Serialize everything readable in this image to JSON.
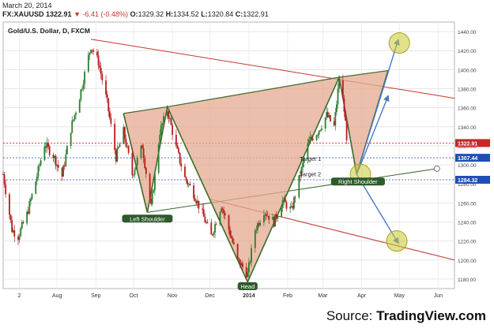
{
  "header": {
    "date": "March 20, 2014",
    "symbol": "FX:XAUUSD",
    "last": "1322.91",
    "change": "-6.41 (-0.48%)",
    "open_label": "O:",
    "open": "1329.32",
    "high_label": "H:",
    "high": "1334.52",
    "low_label": "L:",
    "low": "1320.84",
    "close_label": "C:",
    "close": "1322.91"
  },
  "source": {
    "prefix": "Source: ",
    "brand": "TradingView.com"
  },
  "chart_data": {
    "type": "candlestick",
    "title": "Gold/U.S. Dollar, D, FXCM",
    "y_range": [
      1170,
      1450
    ],
    "y_ticks": [
      1180,
      1200,
      1220,
      1240,
      1260,
      1280,
      1300,
      1320,
      1340,
      1360,
      1380,
      1400,
      1420,
      1440
    ],
    "x_ticks": [
      {
        "label": "2",
        "x": "2013-07-02"
      },
      {
        "label": "Aug",
        "x": "2013-08-01"
      },
      {
        "label": "Sep",
        "x": "2013-09-01"
      },
      {
        "label": "Oct",
        "x": "2013-10-01"
      },
      {
        "label": "Nov",
        "x": "2013-11-01"
      },
      {
        "label": "Dec",
        "x": "2013-12-01"
      },
      {
        "label": "2014",
        "x": "2014-01-01"
      },
      {
        "label": "Feb",
        "x": "2014-02-01"
      },
      {
        "label": "Mar",
        "x": "2014-03-01"
      },
      {
        "label": "Apr",
        "x": "2014-04-01"
      },
      {
        "label": "May",
        "x": "2014-05-01"
      },
      {
        "label": "Jun",
        "x": "2014-06-01"
      }
    ],
    "x_range": [
      "2013-06-19",
      "2014-06-14"
    ],
    "price_path": [
      [
        "2013-06-19",
        1290
      ],
      [
        "2013-06-26",
        1232
      ],
      [
        "2013-07-01",
        1225
      ],
      [
        "2013-07-08",
        1248
      ],
      [
        "2013-07-15",
        1283
      ],
      [
        "2013-07-22",
        1322
      ],
      [
        "2013-07-29",
        1310
      ],
      [
        "2013-08-05",
        1288
      ],
      [
        "2013-08-12",
        1338
      ],
      [
        "2013-08-19",
        1372
      ],
      [
        "2013-08-28",
        1425
      ],
      [
        "2013-09-03",
        1408
      ],
      [
        "2013-09-10",
        1365
      ],
      [
        "2013-09-17",
        1308
      ],
      [
        "2013-09-23",
        1335
      ],
      [
        "2013-09-30",
        1290
      ],
      [
        "2013-10-08",
        1320
      ],
      [
        "2013-10-15",
        1255
      ],
      [
        "2013-10-22",
        1335
      ],
      [
        "2013-10-28",
        1358
      ],
      [
        "2013-11-04",
        1318
      ],
      [
        "2013-11-11",
        1286
      ],
      [
        "2013-11-18",
        1270
      ],
      [
        "2013-11-25",
        1248
      ],
      [
        "2013-12-02",
        1225
      ],
      [
        "2013-12-10",
        1258
      ],
      [
        "2013-12-17",
        1228
      ],
      [
        "2013-12-23",
        1200
      ],
      [
        "2013-12-31",
        1185
      ],
      [
        "2014-01-06",
        1232
      ],
      [
        "2014-01-13",
        1252
      ],
      [
        "2014-01-21",
        1240
      ],
      [
        "2014-01-28",
        1262
      ],
      [
        "2014-02-04",
        1252
      ],
      [
        "2014-02-11",
        1290
      ],
      [
        "2014-02-18",
        1325
      ],
      [
        "2014-02-25",
        1335
      ],
      [
        "2014-03-04",
        1352
      ],
      [
        "2014-03-10",
        1340
      ],
      [
        "2014-03-14",
        1390
      ],
      [
        "2014-03-18",
        1360
      ],
      [
        "2014-03-20",
        1323
      ]
    ],
    "price_labels": [
      {
        "value": 1322.91,
        "text": "1322.91",
        "color": "#c62828"
      },
      {
        "value": 1307.44,
        "text": "1307.44",
        "color": "#1e4fb8"
      },
      {
        "value": 1284.32,
        "text": "1284.32",
        "color": "#1e4fb8"
      }
    ],
    "lines": [
      {
        "name": "upper-resistance-line",
        "color": "#c0392b",
        "from": [
          "2013-08-28",
          1432
        ],
        "to": [
          "2014-06-14",
          1370
        ]
      },
      {
        "name": "lower-support-line",
        "color": "#c0392b",
        "from": [
          "2013-12-01",
          1264
        ],
        "to": [
          "2014-06-14",
          1200
        ]
      },
      {
        "name": "neckline",
        "color": "#3a6b2a",
        "from": [
          "2013-10-12",
          1250
        ],
        "to": [
          "2014-05-31",
          1296
        ]
      }
    ],
    "pattern": {
      "name": "butterfly",
      "fill": "#e4a98f",
      "outline": "#3d6b2b",
      "points": [
        [
          "2013-09-23",
          1354
        ],
        [
          "2013-10-12",
          1250
        ],
        [
          "2013-10-28",
          1361
        ],
        [
          "2013-12-31",
          1177
        ],
        [
          "2014-03-14",
          1392
        ],
        [
          "2014-03-28",
          1290
        ],
        [
          "2014-04-22",
          1399
        ]
      ]
    },
    "projections": [
      {
        "name": "projection-arrow-up-high",
        "from": [
          "2014-03-28",
          1290
        ],
        "to": [
          "2014-04-30",
          1431
        ]
      },
      {
        "name": "projection-arrow-up-mid",
        "from": [
          "2014-03-28",
          1290
        ],
        "to": [
          "2014-04-22",
          1372
        ]
      },
      {
        "name": "projection-arrow-down",
        "from": [
          "2014-03-28",
          1290
        ],
        "to": [
          "2014-04-30",
          1218
        ]
      }
    ],
    "target_circles": [
      {
        "name": "target-circle-top",
        "at": [
          "2014-05-01",
          1428
        ]
      },
      {
        "name": "target-circle-right-shoulder",
        "at": [
          "2014-03-31",
          1290
        ]
      },
      {
        "name": "target-circle-bottom",
        "at": [
          "2014-04-29",
          1220
        ]
      }
    ],
    "neckline_end_marker": [
      "2014-05-31",
      1296
    ],
    "annotations": [
      {
        "name": "target-1-label",
        "text": "Target 1",
        "at": [
          "2014-02-19",
          1304
        ],
        "style": "plain"
      },
      {
        "name": "target-2-label",
        "text": "Target 2",
        "at": [
          "2014-02-19",
          1288
        ],
        "style": "plain"
      },
      {
        "name": "left-shoulder-label",
        "text": "Left Shoulder",
        "at": [
          "2013-10-12",
          1241
        ],
        "style": "badge"
      },
      {
        "name": "right-shoulder-label",
        "text": "Right Shoulder",
        "at": [
          "2014-03-29",
          1280
        ],
        "style": "badge"
      },
      {
        "name": "head-label",
        "text": "Head",
        "at": [
          "2013-12-31",
          1170
        ],
        "style": "badge"
      }
    ]
  }
}
